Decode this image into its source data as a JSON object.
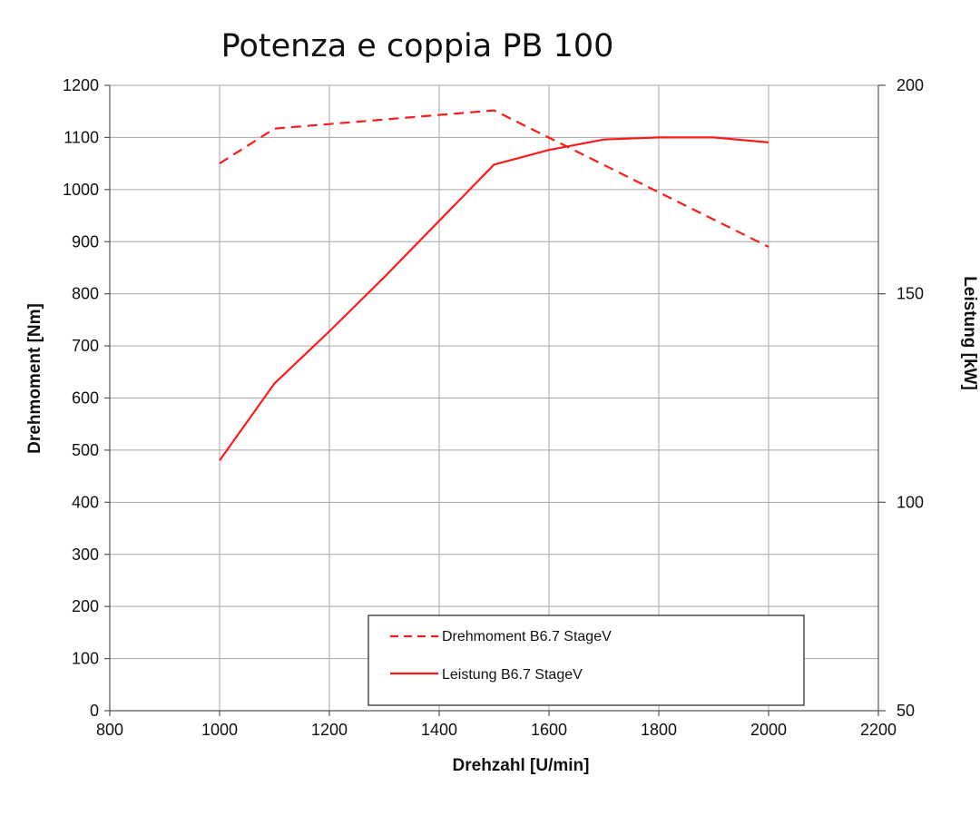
{
  "chart_data": {
    "type": "line",
    "title": "Potenza e coppia PB 100",
    "xlabel": "Drehzahl [U/min]",
    "ylabel": "Drehmoment [Nm]",
    "y2label": "Leistung [kW]",
    "xlim": [
      800,
      2200
    ],
    "ylim": [
      0,
      1200
    ],
    "y2lim": [
      50,
      200
    ],
    "xticks": [
      "800",
      "1000",
      "1200",
      "1400",
      "1600",
      "1800",
      "2000",
      "2200"
    ],
    "yticks": [
      "0",
      "100",
      "200",
      "300",
      "400",
      "500",
      "600",
      "700",
      "800",
      "900",
      "1000",
      "1100",
      "1200"
    ],
    "y2ticks": [
      "50",
      "100",
      "150",
      "200"
    ],
    "grid": true,
    "legend_position": "bottom-center",
    "series": [
      {
        "name": "Drehmoment B6.7 StageV",
        "axis": "left",
        "style": "dashed",
        "color": "#ff1a1a",
        "x": [
          1000,
          1100,
          1500,
          2000
        ],
        "y": [
          1050,
          1117,
          1152,
          890
        ]
      },
      {
        "name": "Leistung B6.7 StageV",
        "axis": "right",
        "style": "solid",
        "color": "#ff1a1a",
        "x": [
          1000,
          1100,
          1200,
          1300,
          1400,
          1500,
          1600,
          1700,
          1800,
          1900,
          2000
        ],
        "y": [
          110,
          128.5,
          141,
          154,
          167.5,
          181,
          184.5,
          187,
          187.5,
          187.5,
          186.3
        ]
      }
    ]
  }
}
